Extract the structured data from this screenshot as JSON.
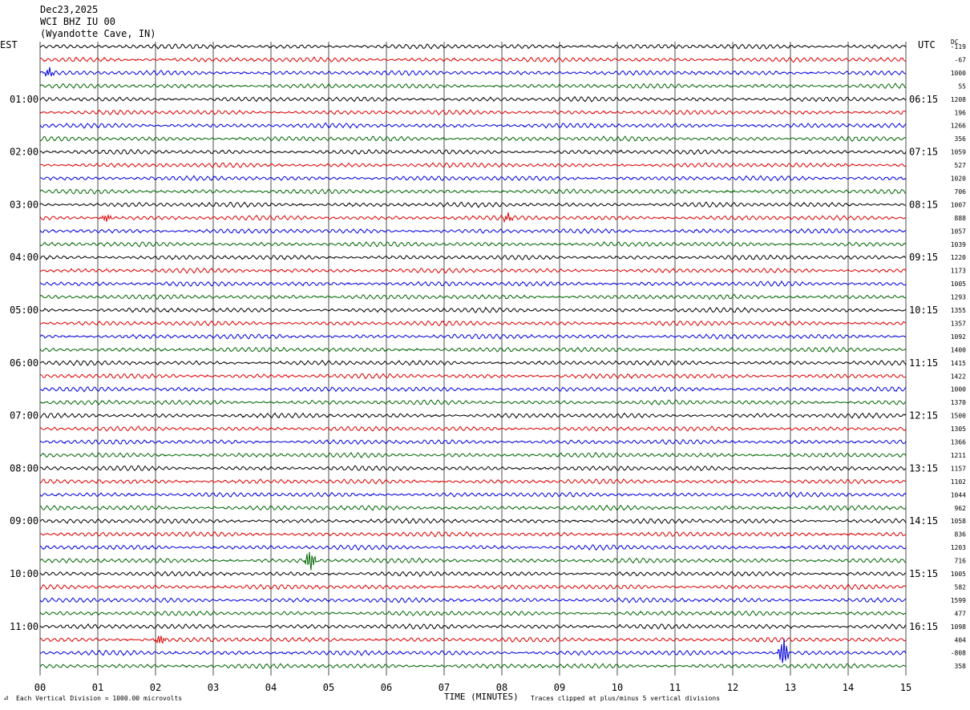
{
  "header": {
    "date": "Dec23,2025",
    "station": "WCI BHZ IU 00",
    "location": "(Wyandotte Cave, IN)"
  },
  "left_timezone": "EST",
  "right_timezone": "UTC",
  "dc_label": "DC",
  "footer": {
    "scale_note": "Each Vertical Division = 1000.00 microvolts",
    "xlabel": "TIME (MINUTES)",
    "clip_note": "Traces clipped at plus/minus 5 vertical divisions"
  },
  "colors": {
    "trace_cycle": [
      "#000000",
      "#dd0000",
      "#0000dd",
      "#006600"
    ],
    "grid": "#000000"
  },
  "chart_data": {
    "type": "line",
    "subtype": "helicorder",
    "xlabel": "TIME (MINUTES)",
    "xlim": [
      0,
      15
    ],
    "x_ticks": [
      "00",
      "01",
      "02",
      "03",
      "04",
      "05",
      "06",
      "07",
      "08",
      "09",
      "10",
      "11",
      "12",
      "13",
      "14",
      "15"
    ],
    "row_duration_minutes": 15,
    "left_hour_labels": [
      "01:00",
      "02:00",
      "03:00",
      "04:00",
      "05:00",
      "06:00",
      "07:00",
      "08:00",
      "09:00",
      "10:00",
      "11:00"
    ],
    "right_hour_labels": [
      "06:15",
      "07:15",
      "08:15",
      "09:15",
      "10:15",
      "11:15",
      "12:15",
      "13:15",
      "14:15",
      "15:15",
      "16:15"
    ],
    "dc_offsets": [
      "-119",
      "-67",
      "1000",
      "55",
      "1208",
      "196",
      "1266",
      "356",
      "1059",
      "527",
      "1020",
      "706",
      "1007",
      "888",
      "1057",
      "1039",
      "1220",
      "1173",
      "1005",
      "1293",
      "1355",
      "1357",
      "1092",
      "1400",
      "1415",
      "1422",
      "1000",
      "1370",
      "1500",
      "1305",
      "1366",
      "1211",
      "1157",
      "1102",
      "1044",
      "962",
      "1058",
      "836",
      "1203",
      "716",
      "1005",
      "582",
      "1599",
      "477",
      "1098",
      "404",
      "-808",
      "358"
    ],
    "events": [
      {
        "row": 39,
        "minute": 4.68,
        "amplitude": 2.2
      },
      {
        "row": 46,
        "minute": 12.88,
        "amplitude": 3.0
      },
      {
        "row": 45,
        "minute": 2.08,
        "amplitude": 1.1
      },
      {
        "row": 2,
        "minute": 0.15,
        "amplitude": 1.0
      },
      {
        "row": 13,
        "minute": 1.15,
        "amplitude": 0.8
      },
      {
        "row": 13,
        "minute": 8.1,
        "amplitude": 0.8
      }
    ]
  }
}
